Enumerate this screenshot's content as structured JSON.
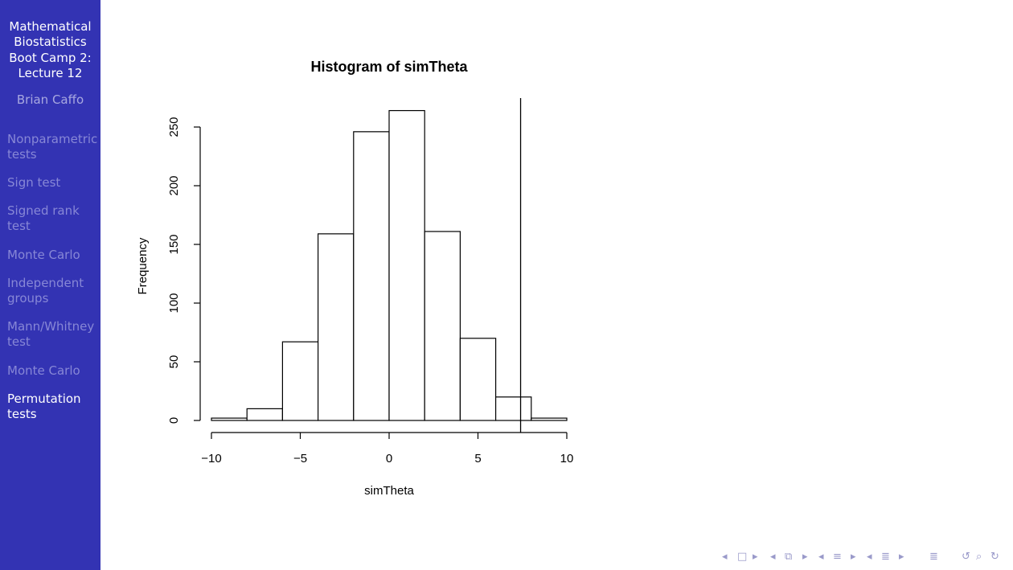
{
  "sidebar": {
    "title_lines": [
      "Mathematical",
      "Biostatistics",
      "Boot Camp 2:",
      "Lecture 12"
    ],
    "author": "Brian Caffo",
    "items": [
      {
        "lines": [
          "Nonparametric",
          "tests"
        ],
        "active": false
      },
      {
        "lines": [
          "Sign test"
        ],
        "active": false
      },
      {
        "lines": [
          "Signed rank",
          "test"
        ],
        "active": false
      },
      {
        "lines": [
          "Monte Carlo"
        ],
        "active": false
      },
      {
        "lines": [
          "Independent",
          "groups"
        ],
        "active": false
      },
      {
        "lines": [
          "Mann/Whitney",
          "test"
        ],
        "active": false
      },
      {
        "lines": [
          "Monte Carlo"
        ],
        "active": false
      },
      {
        "lines": [
          "Permutation",
          "tests"
        ],
        "active": true
      }
    ]
  },
  "colors": {
    "sidebar_bg": "#3333b3",
    "nav_inactive": "#8787d6",
    "nav_active": "#ffffff"
  },
  "chart_data": {
    "type": "bar",
    "title": "Histogram of simTheta",
    "xlabel": "simTheta",
    "ylabel": "Frequency",
    "bin_edges": [
      -10,
      -8,
      -6,
      -4,
      -2,
      0,
      2,
      4,
      6,
      8,
      10
    ],
    "values": [
      2,
      10,
      67,
      159,
      246,
      264,
      161,
      70,
      20,
      2
    ],
    "xlim": [
      -10,
      10
    ],
    "ylim": [
      0,
      250
    ],
    "xticks": [
      -10,
      -5,
      0,
      5,
      10
    ],
    "xtick_labels": [
      "−10",
      "−5",
      "0",
      "5",
      "10"
    ],
    "yticks": [
      0,
      50,
      100,
      150,
      200,
      250
    ],
    "ytick_labels": [
      "0",
      "50",
      "100",
      "150",
      "200",
      "250"
    ],
    "vline_x": 7.4,
    "grid": false
  },
  "nav_controls": [
    {
      "name": "frame-prev-icon",
      "glyph": "◂"
    },
    {
      "name": "frame-icon",
      "glyph": "□"
    },
    {
      "name": "frame-next-icon",
      "glyph": "▸"
    },
    {
      "name": "subsection-prev-icon",
      "glyph": "◂"
    },
    {
      "name": "subsection-icon",
      "glyph": "⧉"
    },
    {
      "name": "subsection-next-icon",
      "glyph": "▸"
    },
    {
      "name": "section-prev-icon",
      "glyph": "◂"
    },
    {
      "name": "section-icon",
      "glyph": "≡"
    },
    {
      "name": "section-next-icon",
      "glyph": "▸"
    },
    {
      "name": "document-prev-icon",
      "glyph": "◂"
    },
    {
      "name": "document-icon",
      "glyph": "≣"
    },
    {
      "name": "document-next-icon",
      "glyph": "▸"
    },
    {
      "name": "appendix-icon",
      "glyph": "≣"
    },
    {
      "name": "back-icon",
      "glyph": "↺"
    },
    {
      "name": "search-icon",
      "glyph": "⌕"
    },
    {
      "name": "forward-icon",
      "glyph": "↻"
    }
  ]
}
